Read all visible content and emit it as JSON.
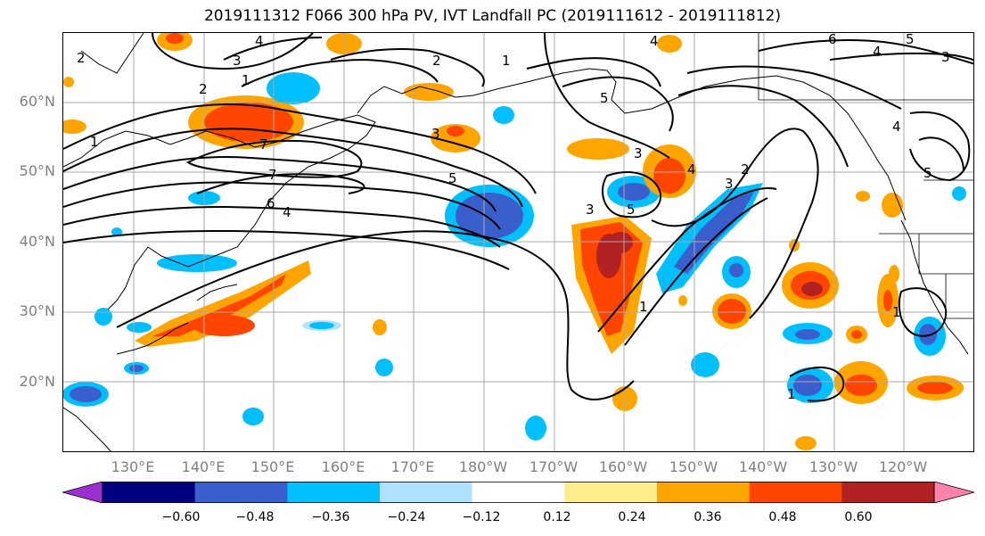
{
  "title": "2019111312 F066 300 hPa PV, IVT Landfall PC (2019111612 - 2019111812)",
  "lat_labels": [
    "60°N",
    "50°N",
    "40°N",
    "30°N",
    "20°N"
  ],
  "lon_labels": [
    "130°E",
    "140°E",
    "150°E",
    "160°E",
    "170°E",
    "180°W",
    "170°W",
    "160°W",
    "150°W",
    "140°W",
    "130°W",
    "120°W"
  ],
  "colorbar": {
    "colors": [
      "#9b30d0",
      "#000080",
      "#3a5fcd",
      "#00bfff",
      "#b0e2ff",
      "#ffffff",
      "#ffec8b",
      "#ffa500",
      "#ff4500",
      "#b22222",
      "#ff82ab"
    ],
    "tick_labels": [
      "−0.60",
      "−0.48",
      "−0.36",
      "−0.24",
      "−0.12",
      "0.12",
      "0.24",
      "0.36",
      "0.48",
      "0.60"
    ]
  },
  "contour_labels": [
    "4",
    "3",
    "2",
    "1",
    "2",
    "1",
    "2",
    "3",
    "7",
    "7",
    "6",
    "4",
    "5",
    "1",
    "3",
    "5",
    "3",
    "4",
    "3",
    "2",
    "5",
    "4",
    "1",
    "6",
    "4",
    "5",
    "3",
    "4",
    "5",
    "1",
    "1"
  ]
}
